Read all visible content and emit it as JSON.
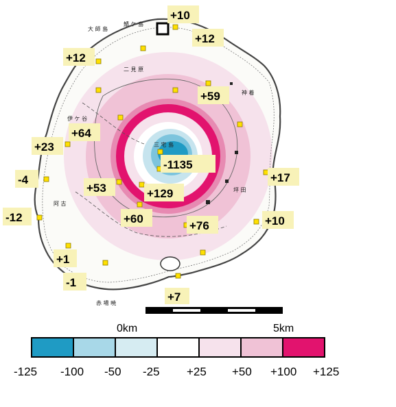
{
  "colors": {
    "ring_pos125": "#e2136e",
    "ring_pos100": "#e78ab2",
    "ring_pos50": "#f0c2d6",
    "ring_pos25": "#f6e2ec",
    "center_neg125": "#1f9bc4",
    "center_neg100": "#7cc4dd",
    "center_neg50": "#c6e4ee",
    "station": "#ffe000",
    "label_bg": "#f8f2b8"
  },
  "stations": [
    {
      "id": "s1",
      "value": "+10"
    },
    {
      "id": "s2",
      "value": "+12"
    },
    {
      "id": "s3",
      "value": "+12"
    },
    {
      "id": "s4",
      "value": "+59"
    },
    {
      "id": "s5",
      "value": "+64"
    },
    {
      "id": "s6",
      "value": "+23"
    },
    {
      "id": "s7",
      "value": "-1135"
    },
    {
      "id": "s8",
      "value": "-4"
    },
    {
      "id": "s9",
      "value": "+17"
    },
    {
      "id": "s10",
      "value": "+53"
    },
    {
      "id": "s11",
      "value": "+129"
    },
    {
      "id": "s12",
      "value": "-12"
    },
    {
      "id": "s13",
      "value": "+60"
    },
    {
      "id": "s14",
      "value": "+76"
    },
    {
      "id": "s15",
      "value": "+10"
    },
    {
      "id": "s16",
      "value": "+1"
    },
    {
      "id": "s17",
      "value": "-1"
    },
    {
      "id": "s18",
      "value": "+7"
    }
  ],
  "place_names": [
    "大 師 島",
    "鯖 ケ 島",
    "二 見 原",
    "伊 ケ 谷",
    "坪 田",
    "三 宅 島",
    "神 着",
    "阿 古",
    "赤 場 暁"
  ],
  "scale_bar": {
    "start_label": "0km",
    "end_label": "5km"
  },
  "legend": {
    "ticks": [
      "-125",
      "-100",
      "-50",
      "-25",
      "+25",
      "+50",
      "+100",
      "+125"
    ],
    "swatches": [
      "#1f9bc4",
      "#a8d8e8",
      "#d6ecf2",
      "#ffffff",
      "#f6e2ec",
      "#f0c2d6",
      "#e2136e"
    ]
  }
}
